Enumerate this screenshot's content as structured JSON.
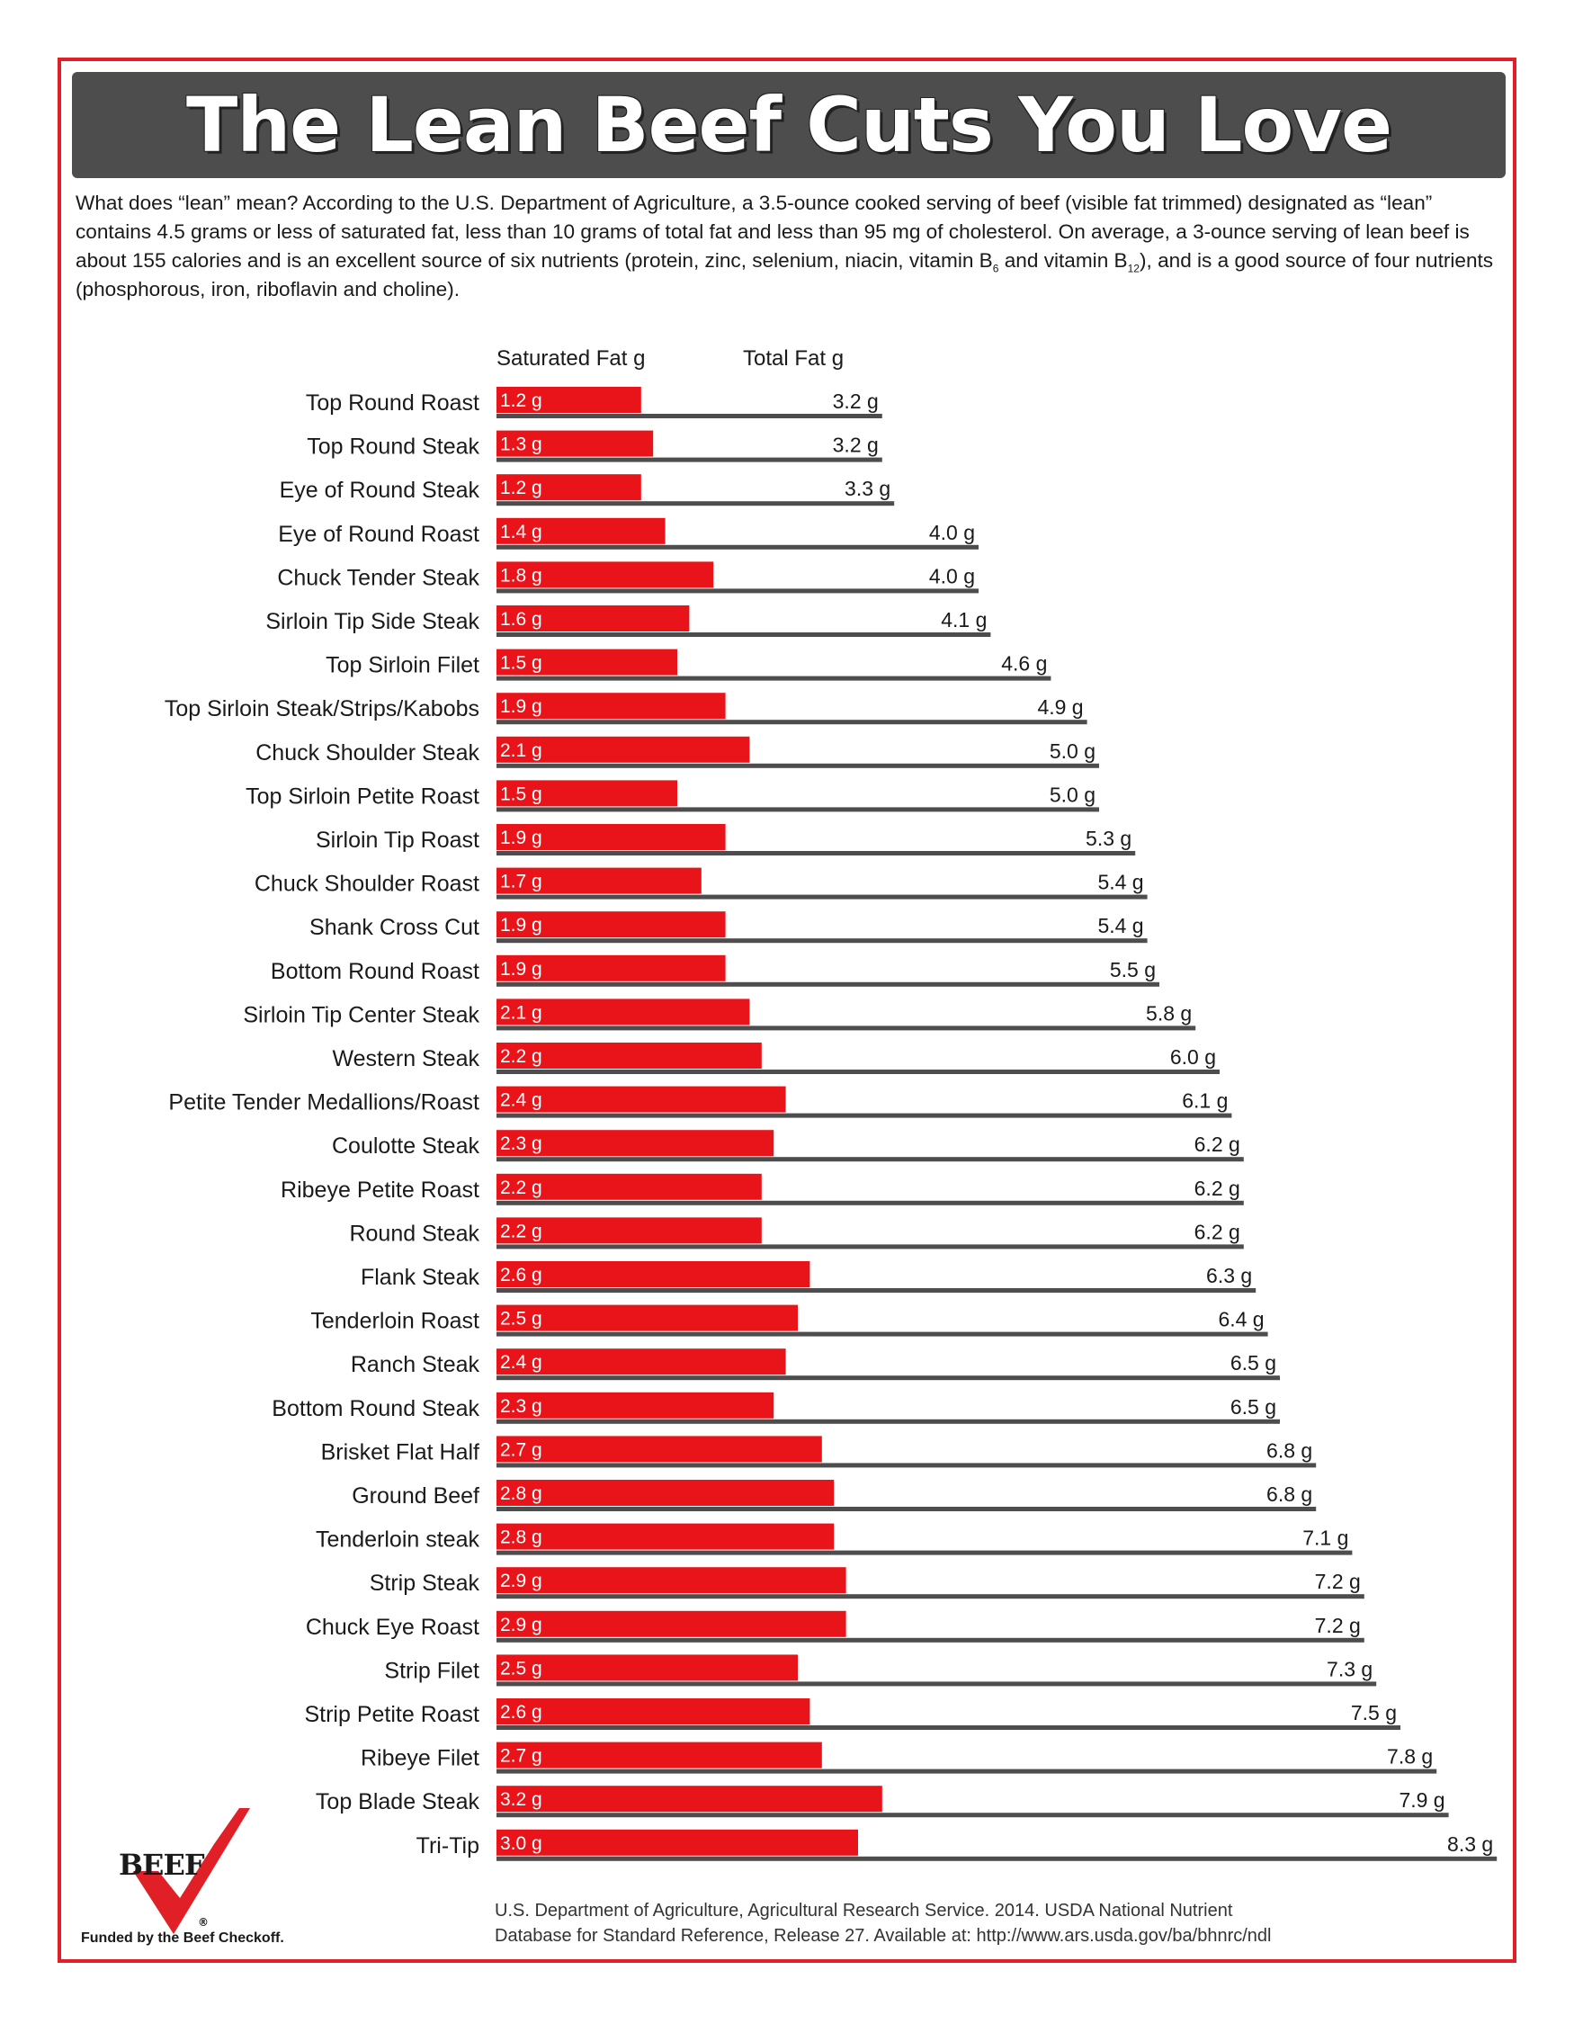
{
  "page": {
    "title": "The Lean Beef Cuts You Love",
    "intro": {
      "part1": "What does “lean” mean? According to the U.S. Department of Agriculture, a 3.5-ounce cooked serving of beef (visible fat trimmed) designated as “lean” contains 4.5 grams or less of saturated fat, less than 10 grams of total fat and less than 95 mg of cholesterol. On average, a 3-ounce serving of lean beef is about 155 calories and is an excellent source of six nutrients (protein, zinc, selenium, niacin, vitamin B",
      "sub1": "6",
      "part2": " and vitamin B",
      "sub2": "12",
      "part3": "), and is a good source of four nutrients (phosphorous, iron, riboflavin and choline)."
    },
    "source_line1": "U.S. Department of Agriculture, Agricultural Research Service. 2014. USDA National Nutrient",
    "source_line2": "Database for Standard Reference, Release 27. Available at: http://www.ars.usda.gov/ba/bhnrc/ndl",
    "logo_text": "BEEF",
    "logo_reg": "®",
    "funded_text": "Funded by the Beef Checkoff.",
    "colors": {
      "frame": "#e11f26",
      "title_bar": "#4d4d4d",
      "sat_bar": "#e8141a",
      "total_line": "#4d4d4d"
    }
  },
  "chart_data": {
    "type": "bar",
    "title": "",
    "xlabel": "",
    "ylabel": "",
    "series": [
      {
        "name": "Saturated Fat g",
        "values": [
          1.2,
          1.3,
          1.2,
          1.4,
          1.8,
          1.6,
          1.5,
          1.9,
          2.1,
          1.5,
          1.9,
          1.7,
          1.9,
          1.9,
          2.1,
          2.2,
          2.4,
          2.3,
          2.2,
          2.2,
          2.6,
          2.5,
          2.4,
          2.3,
          2.7,
          2.8,
          2.8,
          2.9,
          2.9,
          2.5,
          2.6,
          2.7,
          3.2,
          3.0
        ],
        "labels": [
          "1.2 g",
          "1.3 g",
          "1.2 g",
          "1.4 g",
          "1.8 g",
          "1.6 g",
          "1.5 g",
          "1.9 g",
          "2.1 g",
          "1.5 g",
          "1.9 g",
          "1.7 g",
          "1.9 g",
          "1.9 g",
          "2.1 g",
          "2.2 g",
          "2.4 g",
          "2.3 g",
          "2.2 g",
          "2.2 g",
          "2.6 g",
          "2.5 g",
          "2.4 g",
          "2.3 g",
          "2.7 g",
          "2.8 g",
          "2.8 g",
          "2.9 g",
          "2.9 g",
          "2.5 g",
          "2.6 g",
          "2.7 g",
          "3.2 g",
          "3.0 g"
        ]
      },
      {
        "name": "Total Fat g",
        "values": [
          3.2,
          3.2,
          3.3,
          4.0,
          4.0,
          4.1,
          4.6,
          4.9,
          5.0,
          5.0,
          5.3,
          5.4,
          5.4,
          5.5,
          5.8,
          6.0,
          6.1,
          6.2,
          6.2,
          6.2,
          6.3,
          6.4,
          6.5,
          6.5,
          6.8,
          6.8,
          7.1,
          7.2,
          7.2,
          7.3,
          7.5,
          7.8,
          7.9,
          8.3
        ],
        "labels": [
          "3.2 g",
          "3.2 g",
          "3.3 g",
          "4.0 g",
          "4.0 g",
          "4.1 g",
          "4.6 g",
          "4.9 g",
          "5.0 g",
          "5.0 g",
          "5.3 g",
          "5.4 g",
          "5.4 g",
          "5.5 g",
          "5.8 g",
          "6.0 g",
          "6.1 g",
          "6.2 g",
          "6.2 g",
          "6.2 g",
          "6.3 g",
          "6.4 g",
          "6.5 g",
          "6.5 g",
          "6.8 g",
          "6.8 g",
          "7.1 g",
          "7.2 g",
          "7.2 g",
          "7.3 g",
          "7.5 g",
          "7.8 g",
          "7.9 g",
          "8.3 g"
        ]
      }
    ],
    "categories": [
      "Top Round Roast",
      "Top Round Steak",
      "Eye of Round Steak",
      "Eye of Round Roast",
      "Chuck Tender Steak",
      "Sirloin Tip Side Steak",
      "Top Sirloin Filet",
      "Top Sirloin Steak/Strips/Kabobs",
      "Chuck Shoulder Steak",
      "Top Sirloin Petite Roast",
      "Sirloin Tip Roast",
      "Chuck Shoulder Roast",
      "Shank Cross Cut",
      "Bottom Round Roast",
      "Sirloin Tip Center Steak",
      "Western Steak",
      "Petite Tender Medallions/Roast",
      "Coulotte Steak",
      "Ribeye Petite Roast",
      "Round Steak",
      "Flank Steak",
      "Tenderloin Roast",
      "Ranch Steak",
      "Bottom Round Steak",
      "Brisket Flat Half",
      "Ground Beef",
      "Tenderloin steak",
      "Strip Steak",
      "Chuck Eye Roast",
      "Strip Filet",
      "Strip Petite Roast",
      "Ribeye Filet",
      "Top Blade Steak",
      "Tri-Tip"
    ],
    "grid": false,
    "legend": "top"
  }
}
